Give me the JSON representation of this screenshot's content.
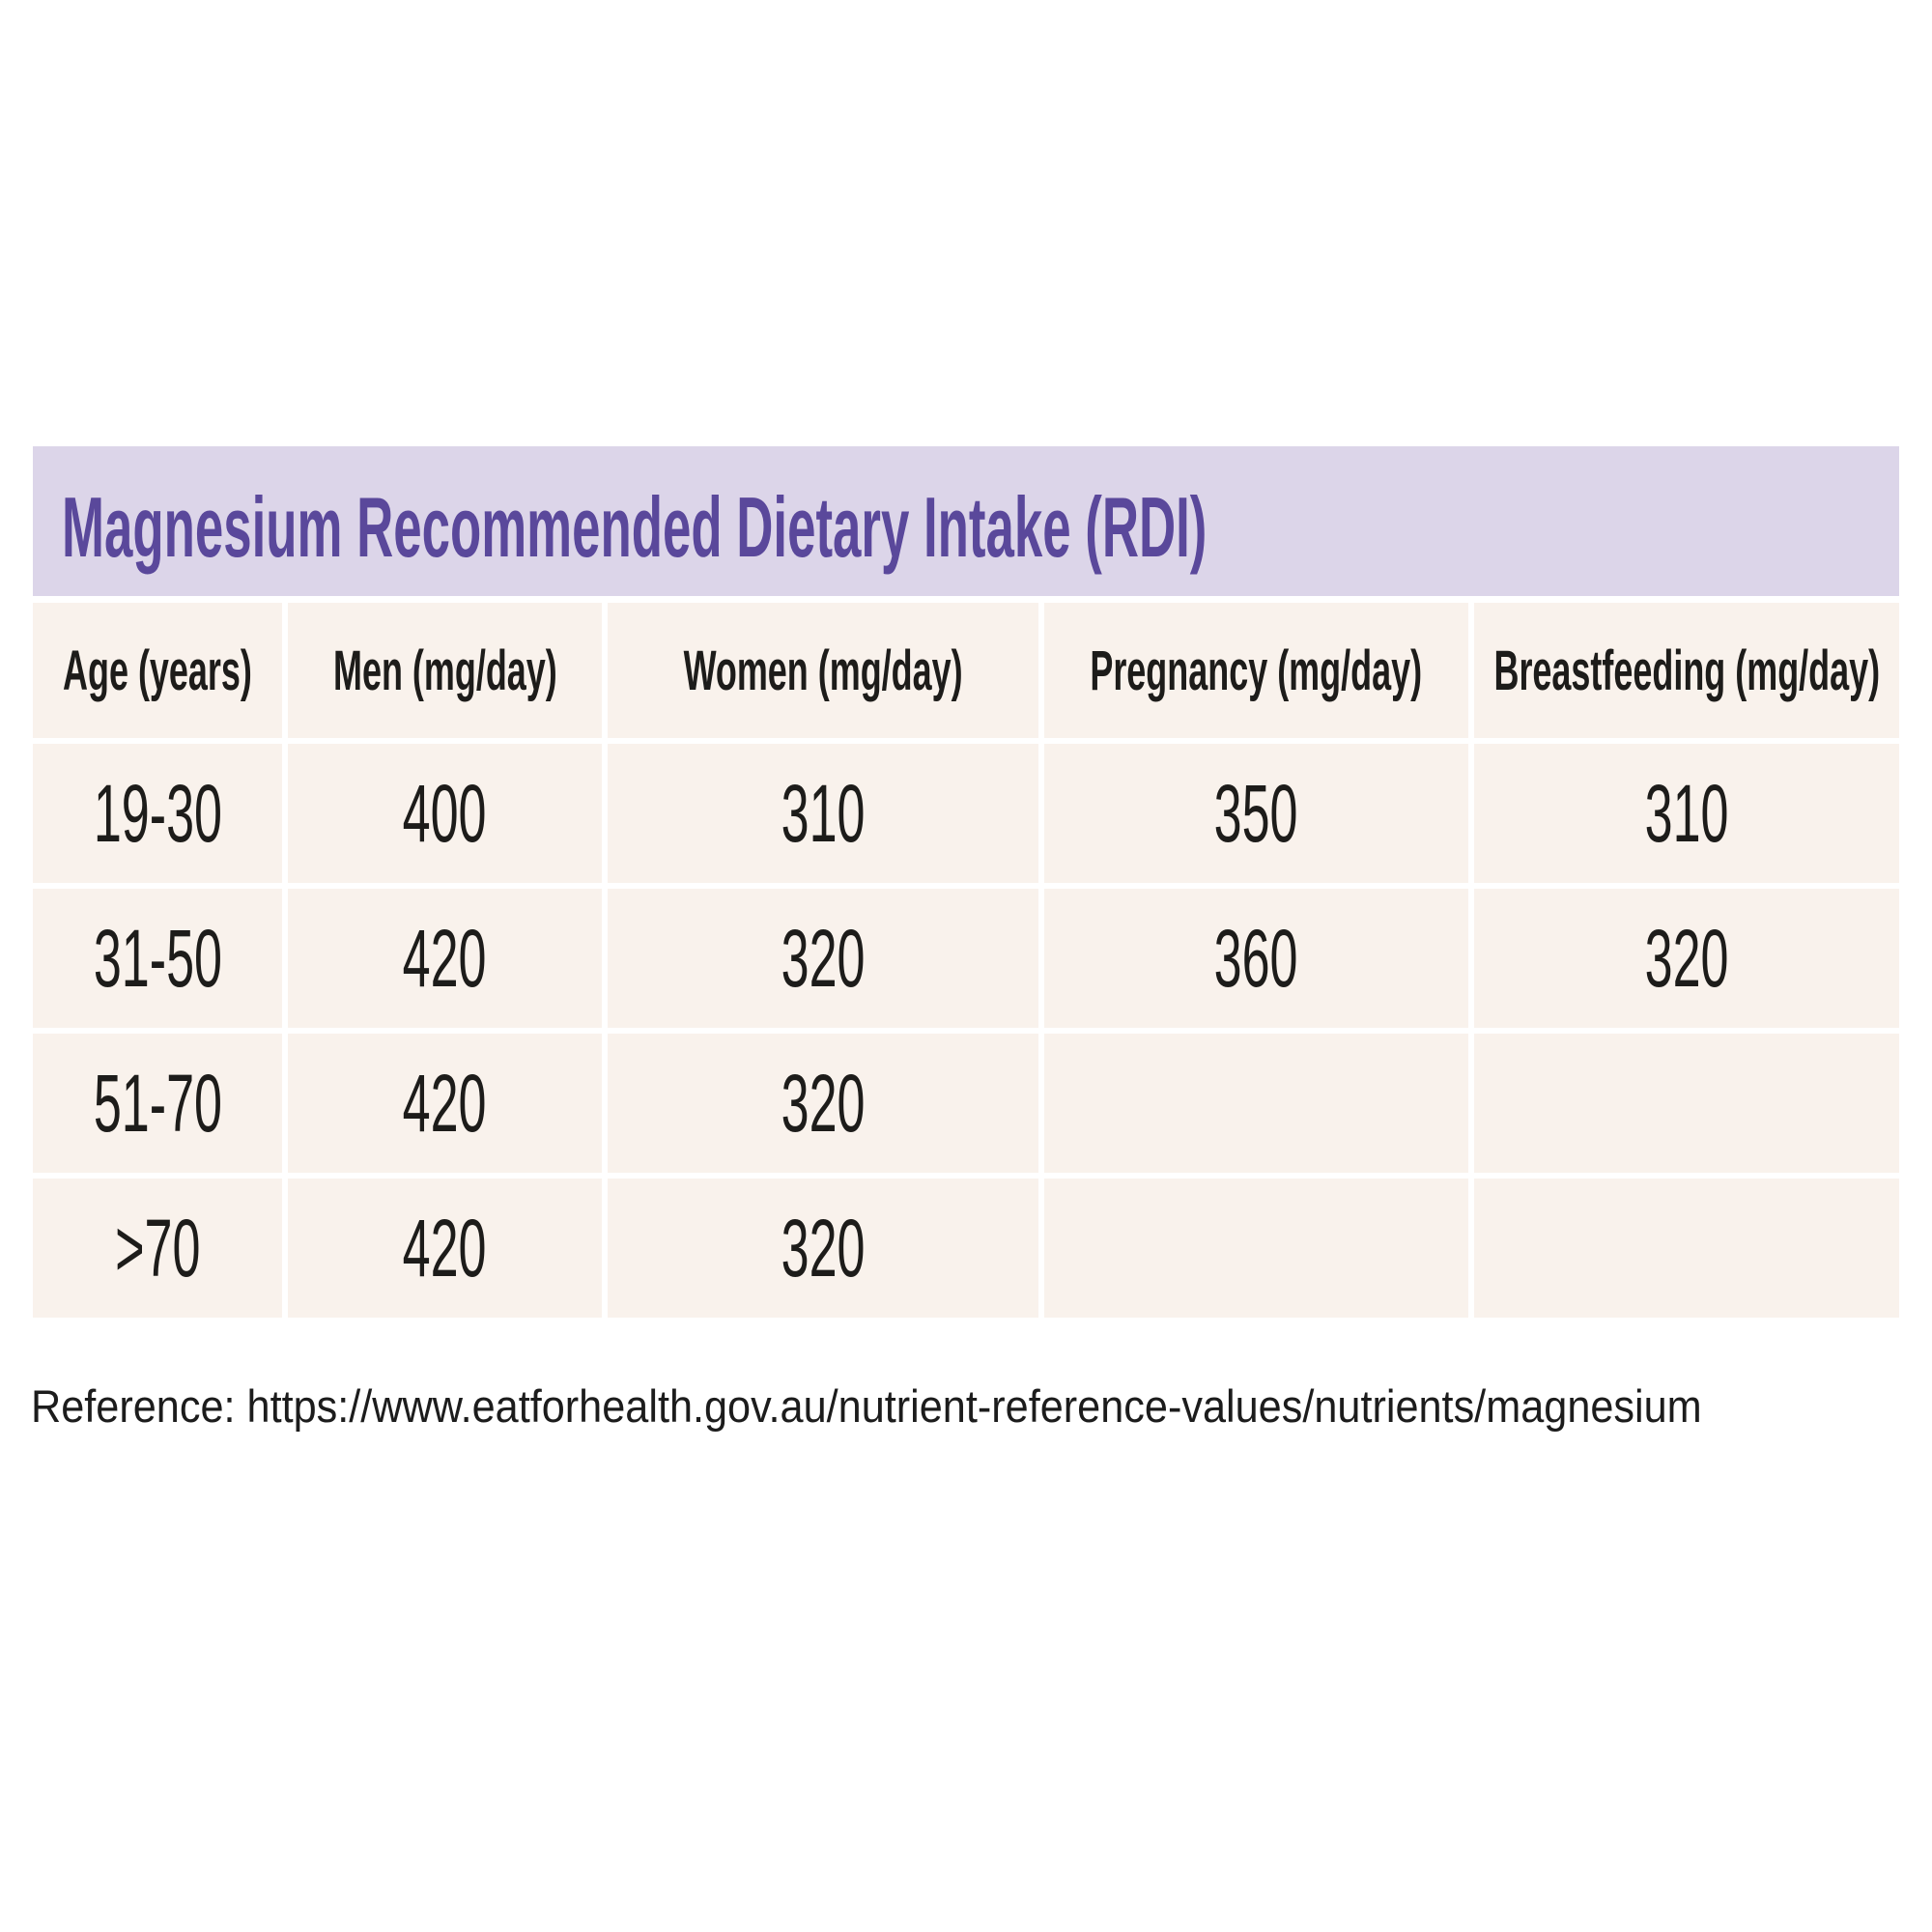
{
  "title": "Magnesium Recommended Dietary Intake (RDI)",
  "reference": "Reference: https://www.eatforhealth.gov.au/nutrient-reference-values/nutrients/magnesium",
  "colors": {
    "banner_background": "#dcd5e9",
    "title_text": "#5a489b",
    "cell_background": "#f9f2ec",
    "cell_text": "#1d1c1a",
    "page_background": "#ffffff"
  },
  "table": {
    "headers": [
      "Age (years)",
      "Men (mg/day)",
      "Women (mg/day)",
      "Pregnancy (mg/day)",
      "Breastfeeding (mg/day)"
    ],
    "rows": [
      [
        "19-30",
        "400",
        "310",
        "350",
        "310"
      ],
      [
        "31-50",
        "420",
        "320",
        "360",
        "320"
      ],
      [
        "51-70",
        "420",
        "320",
        "",
        ""
      ],
      [
        ">70",
        "420",
        "320",
        "",
        ""
      ]
    ]
  },
  "chart_data": {
    "type": "table",
    "title": "Magnesium Recommended Dietary Intake (RDI)",
    "columns": [
      "Age (years)",
      "Men (mg/day)",
      "Women (mg/day)",
      "Pregnancy (mg/day)",
      "Breastfeeding (mg/day)"
    ],
    "rows": [
      {
        "age": "19-30",
        "men_mg_day": 400,
        "women_mg_day": 310,
        "pregnancy_mg_day": 350,
        "breastfeeding_mg_day": 310
      },
      {
        "age": "31-50",
        "men_mg_day": 420,
        "women_mg_day": 320,
        "pregnancy_mg_day": 360,
        "breastfeeding_mg_day": 320
      },
      {
        "age": "51-70",
        "men_mg_day": 420,
        "women_mg_day": 320,
        "pregnancy_mg_day": null,
        "breastfeeding_mg_day": null
      },
      {
        "age": ">70",
        "men_mg_day": 420,
        "women_mg_day": 320,
        "pregnancy_mg_day": null,
        "breastfeeding_mg_day": null
      }
    ],
    "annotation": "Reference: https://www.eatforhealth.gov.au/nutrient-reference-values/nutrients/magnesium"
  }
}
